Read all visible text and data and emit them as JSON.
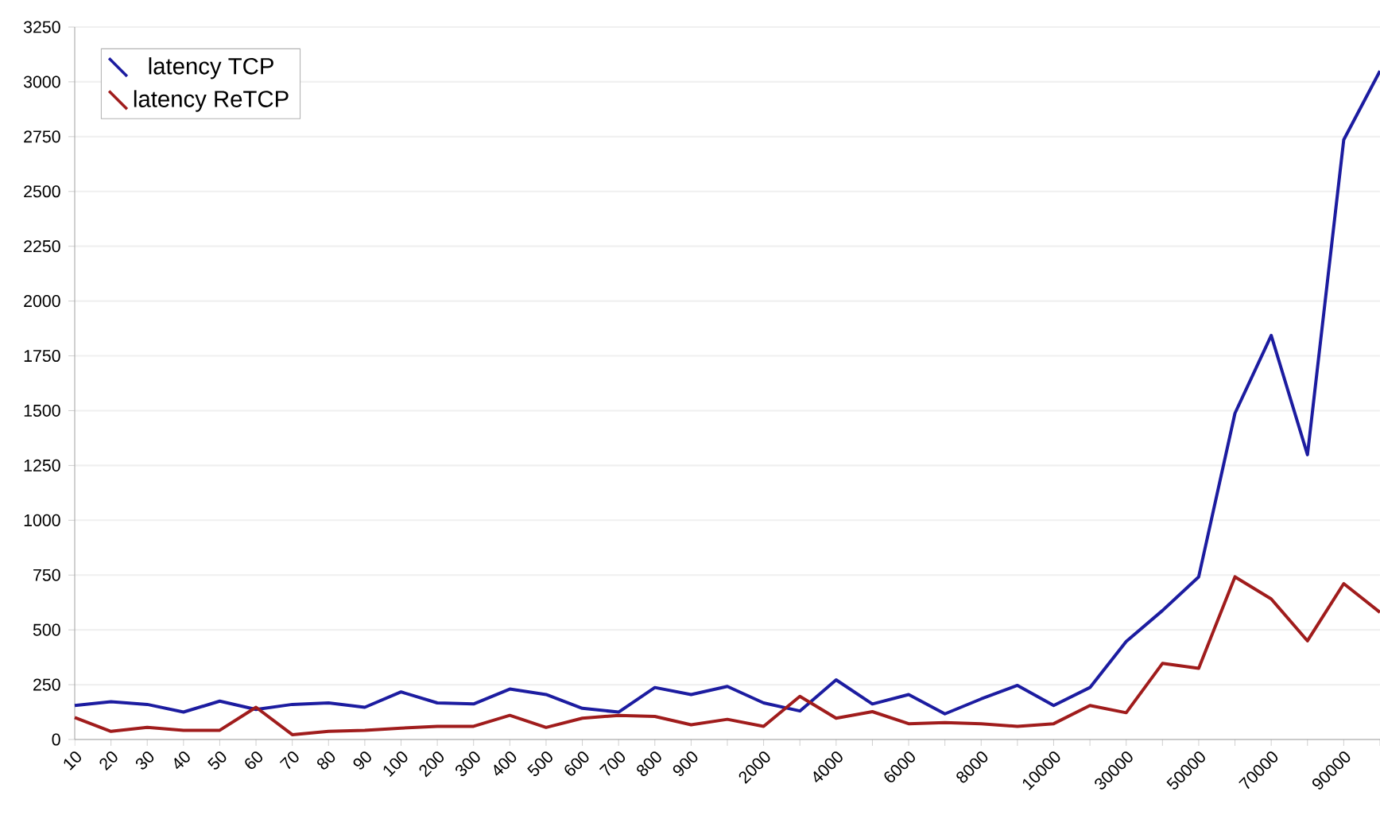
{
  "chart_data": {
    "type": "line",
    "categories": [
      "10",
      "20",
      "30",
      "40",
      "50",
      "60",
      "70",
      "80",
      "90",
      "100",
      "200",
      "300",
      "400",
      "500",
      "600",
      "700",
      "800",
      "900",
      null,
      "2000",
      null,
      "4000",
      null,
      "6000",
      null,
      "8000",
      null,
      "10000",
      null,
      "30000",
      null,
      "50000",
      null,
      "70000",
      null,
      "90000",
      null
    ],
    "series": [
      {
        "name": "latency TCP",
        "color": "#1c1ca0",
        "values": [
          155,
          172,
          160,
          125,
          175,
          137,
          160,
          167,
          147,
          217,
          167,
          162,
          230,
          205,
          142,
          125,
          237,
          205,
          242,
          167,
          130,
          272,
          162,
          205,
          117,
          185,
          247,
          155,
          237,
          447,
          588,
          742,
          1488,
          1843,
          1299,
          2736,
          3050
        ]
      },
      {
        "name": "latency ReTCP",
        "color": "#a01c1c",
        "values": [
          100,
          37,
          55,
          42,
          42,
          147,
          22,
          37,
          42,
          52,
          60,
          60,
          110,
          55,
          97,
          110,
          105,
          67,
          92,
          60,
          197,
          97,
          127,
          72,
          77,
          72,
          60,
          72,
          155,
          122,
          347,
          325,
          742,
          641,
          450,
          711,
          580
        ]
      }
    ],
    "ylim": [
      0,
      3250
    ],
    "yticks": [
      0,
      250,
      500,
      750,
      1000,
      1250,
      1500,
      1750,
      2000,
      2250,
      2500,
      2750,
      3000,
      3250
    ],
    "grid": "y",
    "legend": "top left",
    "marker": "none",
    "line_style": "solid"
  }
}
